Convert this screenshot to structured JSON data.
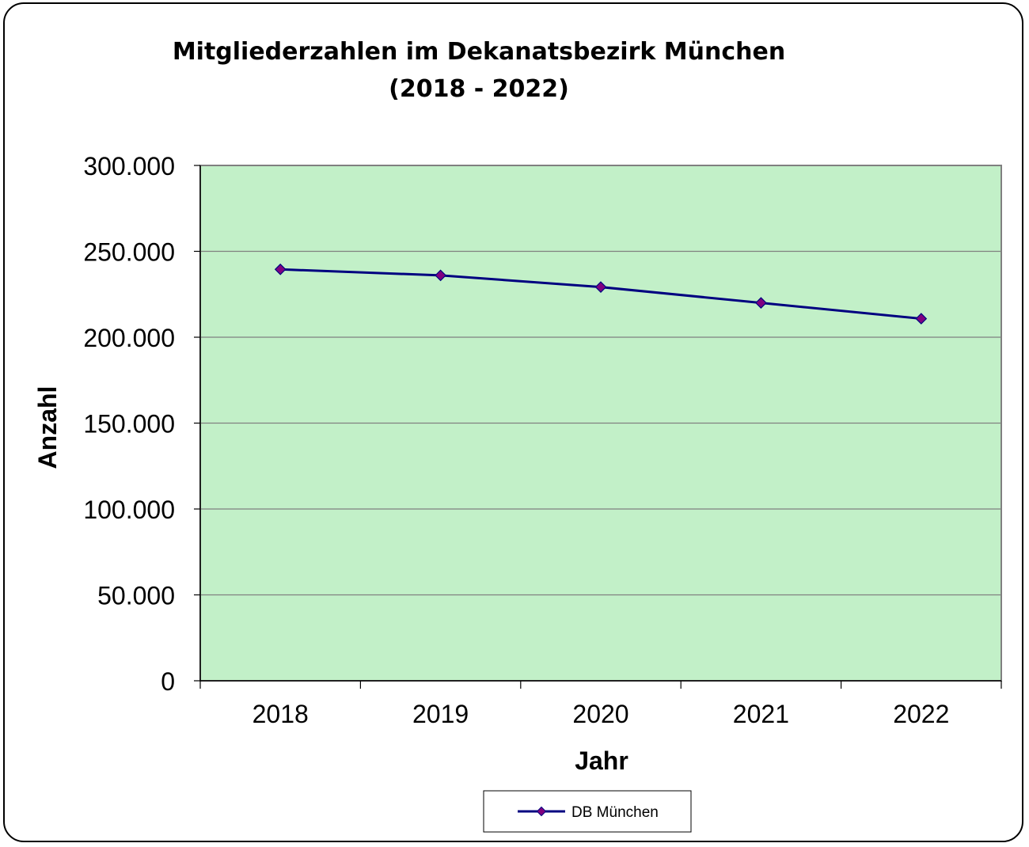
{
  "chart_data": {
    "type": "line",
    "title": "Mitgliederzahlen im Dekanatsbezirk München",
    "subtitle": "(2018 - 2022)",
    "xlabel": "Jahr",
    "ylabel": "Anzahl",
    "categories": [
      "2018",
      "2019",
      "2020",
      "2021",
      "2022"
    ],
    "series": [
      {
        "name": "DB München",
        "values": [
          239500,
          236000,
          229200,
          220000,
          210800
        ],
        "color": "#000080",
        "marker_color": "#800080"
      }
    ],
    "ylim": [
      0,
      300000
    ],
    "yticks": [
      0,
      50000,
      100000,
      150000,
      200000,
      250000,
      300000
    ],
    "ytick_labels": [
      "0",
      "50.000",
      "100.000",
      "150.000",
      "200.000",
      "250.000",
      "300.000"
    ],
    "grid": true,
    "legend_position": "bottom",
    "plot_background": "#c2f0c8"
  }
}
